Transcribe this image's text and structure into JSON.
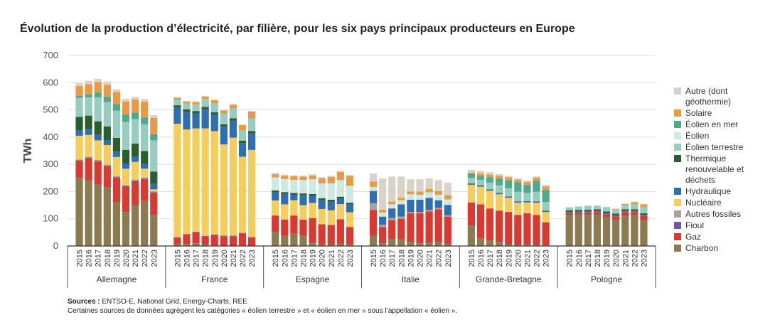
{
  "chart_data": {
    "type": "stacked-bar",
    "title": "Évolution de la production d’électricité, par filière, pour les six pays principaux producteurs en Europe",
    "y_label": "TWh",
    "ylim": [
      0,
      700
    ],
    "yticks": [
      0,
      100,
      200,
      300,
      400,
      500,
      600,
      700
    ],
    "grid": true,
    "categories": [
      "2015",
      "2016",
      "2017",
      "2018",
      "2019",
      "2020",
      "2021",
      "2022",
      "2023"
    ],
    "groups": [
      "Allemagne",
      "France",
      "Espagne",
      "Italie",
      "Grande-Bretagne",
      "Pologne"
    ],
    "series": [
      {
        "name": "Charbon",
        "color": "#8c7b50",
        "values": [
          [
            250,
            240,
            225,
            215,
            160,
            125,
            150,
            165,
            115
          ],
          [
            8,
            7,
            10,
            5,
            2,
            1,
            1,
            1,
            1
          ],
          [
            52,
            37,
            45,
            37,
            12,
            5,
            5,
            8,
            5
          ],
          [
            37,
            10,
            25,
            25,
            15,
            10,
            12,
            15,
            8
          ],
          [
            75,
            28,
            20,
            15,
            5,
            4,
            5,
            4,
            2
          ],
          [
            115,
            115,
            115,
            115,
            105,
            95,
            110,
            115,
            95
          ]
        ]
      },
      {
        "name": "Gaz",
        "color": "#d83a32",
        "values": [
          [
            62,
            82,
            85,
            78,
            90,
            93,
            88,
            80,
            80
          ],
          [
            22,
            35,
            40,
            30,
            38,
            35,
            35,
            45,
            30
          ],
          [
            60,
            60,
            67,
            60,
            90,
            75,
            72,
            90,
            65
          ],
          [
            95,
            60,
            70,
            75,
            105,
            110,
            115,
            120,
            100
          ],
          [
            85,
            125,
            118,
            115,
            120,
            110,
            115,
            110,
            85
          ],
          [
            6,
            7,
            8,
            10,
            12,
            14,
            15,
            10,
            15
          ]
        ]
      },
      {
        "name": "Fioul",
        "color": "#7a56a0",
        "values": [
          [
            3,
            3,
            3,
            3,
            3,
            3,
            3,
            3,
            3
          ],
          [
            2,
            2,
            2,
            2,
            2,
            2,
            2,
            2,
            2
          ],
          [
            0,
            0,
            0,
            0,
            0,
            0,
            0,
            0,
            0
          ],
          [
            0,
            0,
            0,
            0,
            0,
            0,
            0,
            0,
            0
          ],
          [
            0,
            0,
            0,
            0,
            0,
            0,
            0,
            0,
            0
          ],
          [
            2,
            2,
            2,
            2,
            2,
            2,
            2,
            2,
            2
          ]
        ]
      },
      {
        "name": "Autres fossiles",
        "color": "#aaa39d",
        "values": [
          [
            3,
            3,
            3,
            3,
            3,
            3,
            3,
            3,
            3
          ],
          [
            0,
            0,
            0,
            0,
            0,
            0,
            0,
            0,
            0
          ],
          [
            0,
            0,
            0,
            0,
            0,
            0,
            0,
            0,
            0
          ],
          [
            25,
            8,
            8,
            8,
            5,
            5,
            5,
            5,
            5
          ],
          [
            0,
            0,
            0,
            0,
            0,
            0,
            0,
            0,
            0
          ],
          [
            0,
            0,
            0,
            0,
            0,
            0,
            0,
            0,
            0
          ]
        ]
      },
      {
        "name": "Nucléaire",
        "color": "#f5cd5c",
        "values": [
          [
            87,
            80,
            72,
            72,
            71,
            60,
            65,
            33,
            7
          ],
          [
            417,
            384,
            380,
            395,
            380,
            335,
            360,
            280,
            320
          ],
          [
            55,
            56,
            56,
            53,
            56,
            56,
            54,
            56,
            54
          ],
          [
            0,
            0,
            0,
            0,
            0,
            0,
            0,
            0,
            0
          ],
          [
            65,
            65,
            65,
            60,
            52,
            45,
            40,
            45,
            38
          ],
          [
            0,
            0,
            0,
            0,
            0,
            0,
            0,
            0,
            0
          ]
        ]
      },
      {
        "name": "Hydraulique",
        "color": "#2f6eb0",
        "values": [
          [
            19,
            21,
            20,
            18,
            20,
            19,
            19,
            17,
            20
          ],
          [
            60,
            65,
            55,
            70,
            60,
            65,
            62,
            50,
            60
          ],
          [
            30,
            38,
            20,
            36,
            26,
            32,
            32,
            20,
            28
          ],
          [
            45,
            30,
            35,
            45,
            45,
            45,
            45,
            28,
            38
          ],
          [
            5,
            5,
            5,
            5,
            5,
            5,
            5,
            5,
            5
          ],
          [
            2,
            2,
            2,
            2,
            2,
            2,
            2,
            2,
            2
          ]
        ]
      },
      {
        "name": "Thermique renouvelable et déchets",
        "color": "#2c5d2e",
        "values": [
          [
            50,
            50,
            50,
            50,
            50,
            50,
            48,
            48,
            45
          ],
          [
            8,
            9,
            9,
            9,
            9,
            9,
            9,
            9,
            9
          ],
          [
            7,
            7,
            7,
            7,
            7,
            7,
            7,
            7,
            7
          ],
          [
            0,
            0,
            0,
            0,
            0,
            0,
            0,
            0,
            0
          ],
          [
            0,
            0,
            0,
            0,
            0,
            0,
            0,
            0,
            0
          ],
          [
            6,
            6,
            6,
            6,
            6,
            6,
            6,
            6,
            6
          ]
        ]
      },
      {
        "name": "Éolien terrestre",
        "color": "#96cdbf",
        "values": [
          [
            70,
            67,
            88,
            90,
            100,
            103,
            90,
            98,
            115
          ],
          [
            21,
            21,
            24,
            28,
            34,
            39,
            36,
            38,
            48
          ],
          [
            0,
            0,
            0,
            0,
            0,
            0,
            0,
            0,
            0
          ],
          [
            0,
            0,
            0,
            0,
            0,
            0,
            0,
            0,
            0
          ],
          [
            20,
            20,
            25,
            28,
            30,
            35,
            30,
            35,
            32
          ],
          [
            10,
            12,
            14,
            12,
            14,
            15,
            15,
            18,
            22
          ]
        ]
      },
      {
        "name": "Éolien",
        "color": "#cde9e2",
        "values": [
          [
            0,
            0,
            0,
            0,
            0,
            0,
            0,
            0,
            0
          ],
          [
            0,
            0,
            0,
            0,
            0,
            0,
            0,
            0,
            0
          ],
          [
            48,
            48,
            48,
            50,
            54,
            55,
            60,
            61,
            62
          ],
          [
            15,
            15,
            15,
            15,
            20,
            18,
            20,
            20,
            20
          ],
          [
            0,
            0,
            0,
            0,
            0,
            0,
            0,
            0,
            0
          ],
          [
            0,
            0,
            0,
            0,
            0,
            0,
            0,
            0,
            0
          ]
        ]
      },
      {
        "name": "Éolien en mer",
        "color": "#4fa98b",
        "values": [
          [
            8,
            12,
            18,
            19,
            24,
            27,
            24,
            25,
            23
          ],
          [
            0,
            0,
            0,
            0,
            0,
            0,
            0,
            1,
            2
          ],
          [
            0,
            0,
            0,
            0,
            0,
            0,
            0,
            0,
            0
          ],
          [
            0,
            0,
            0,
            0,
            0,
            0,
            0,
            0,
            0
          ],
          [
            15,
            15,
            20,
            25,
            30,
            35,
            30,
            40,
            45
          ],
          [
            0,
            0,
            0,
            0,
            0,
            0,
            0,
            0,
            0
          ]
        ]
      },
      {
        "name": "Solaire",
        "color": "#e99a45",
        "values": [
          [
            36,
            37,
            38,
            44,
            45,
            48,
            48,
            58,
            60
          ],
          [
            7,
            8,
            9,
            10,
            11,
            12,
            14,
            18,
            22
          ],
          [
            12,
            12,
            13,
            12,
            14,
            19,
            24,
            30,
            36
          ],
          [
            20,
            10,
            10,
            10,
            10,
            12,
            12,
            14,
            16
          ],
          [
            5,
            8,
            10,
            10,
            10,
            10,
            10,
            12,
            12
          ],
          [
            0,
            0,
            0,
            0,
            1,
            2,
            4,
            8,
            11
          ]
        ]
      },
      {
        "name": "Autre (dont géothermie)",
        "color": "#d9d2c9",
        "values": [
          [
            10,
            12,
            12,
            12,
            10,
            10,
            10,
            10,
            10
          ],
          [
            2,
            2,
            2,
            2,
            2,
            2,
            2,
            2,
            2
          ],
          [
            4,
            4,
            4,
            4,
            4,
            4,
            4,
            4,
            4
          ],
          [
            30,
            115,
            92,
            77,
            45,
            45,
            40,
            40,
            46
          ],
          [
            10,
            10,
            8,
            6,
            5,
            5,
            5,
            5,
            5
          ],
          [
            2,
            2,
            2,
            2,
            2,
            2,
            2,
            2,
            2
          ]
        ]
      }
    ],
    "sources_label": "Sources :",
    "sources": "ENTSO-E, National Grid, Energy-Charts, REE",
    "note": "Certaines sources de données agrègent les catégories « éolien terrestre » et « éolien en mer » sous l’appellation « éolien »."
  }
}
